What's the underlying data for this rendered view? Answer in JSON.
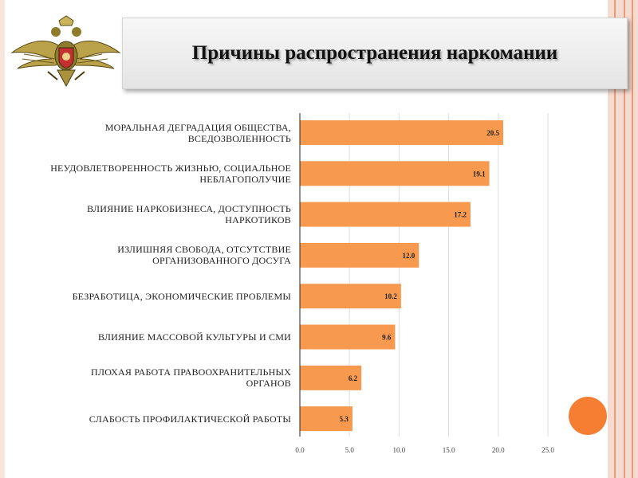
{
  "colors": {
    "bar": "#f79a4f",
    "accent_circle": "#f57e32",
    "frame": "#f6dcd0"
  },
  "emblem": {
    "icon": "double-headed-eagle-emblem"
  },
  "chart_data": {
    "type": "bar",
    "orientation": "horizontal",
    "title": "Причины распространения наркомании",
    "categories": [
      "МОРАЛЬНАЯ ДЕГРАДАЦИЯ ОБЩЕСТВА, ВСЕДОЗВОЛЕННОСТЬ",
      "НЕУДОВЛЕТВОРЕННОСТЬ ЖИЗНЬЮ, СОЦИАЛЬНОЕ НЕБЛАГОПОЛУЧИЕ",
      "ВЛИЯНИЕ НАРКОБИЗНЕСА, ДОСТУПНОСТЬ НАРКОТИКОВ",
      "ИЗЛИШНЯЯ СВОБОДА, ОТСУТСТВИЕ ОРГАНИЗОВАННОГО ДОСУГА",
      "БЕЗРАБОТИЦА, ЭКОНОМИЧЕСКИЕ ПРОБЛЕМЫ",
      "ВЛИЯНИЕ МАССОВОЙ КУЛЬТУРЫ И СМИ",
      "ПЛОХАЯ РАБОТА ПРАВООХРАНИТЕЛЬНЫХ ОРГАНОВ",
      "СЛАБОСТЬ ПРОФИЛАКТИЧЕСКОЙ РАБОТЫ"
    ],
    "values": [
      20.5,
      19.1,
      17.2,
      12.0,
      10.2,
      9.6,
      6.2,
      5.3
    ],
    "data_labels": [
      "20.5",
      "19.1",
      "17.2",
      "12.0",
      "10.2",
      "9.6",
      "6.2",
      "5.3"
    ],
    "x_ticks": [
      "0.0",
      "5.0",
      "10.0",
      "15.0",
      "20.0",
      "25.0"
    ],
    "xlim": [
      0,
      25
    ],
    "grid": true
  }
}
